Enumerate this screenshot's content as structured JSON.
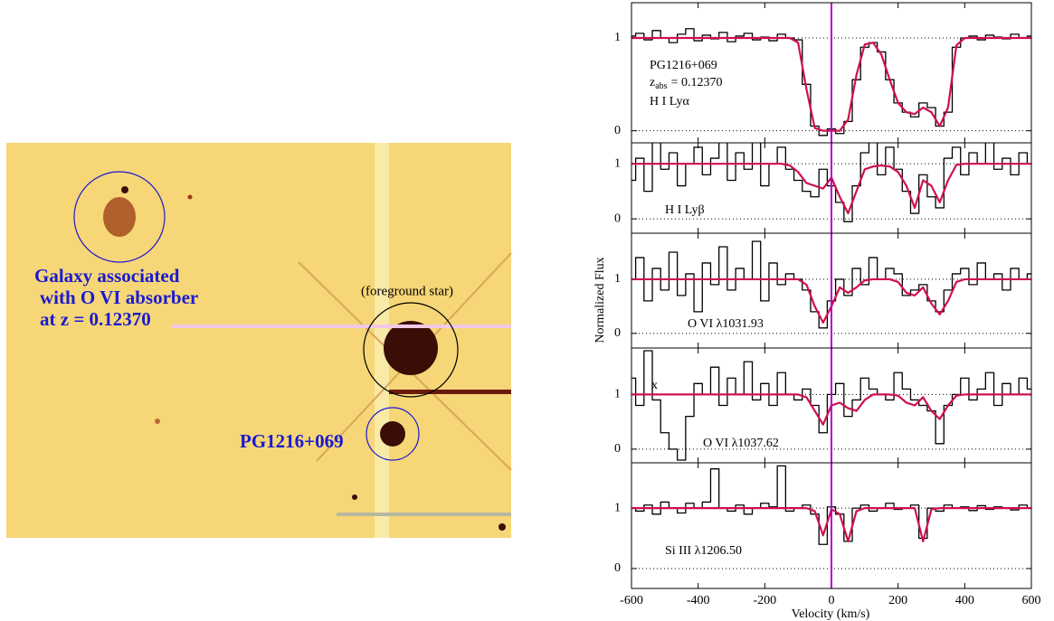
{
  "image": {
    "galaxy_label": [
      "Galaxy associated",
      "with O VI absorber",
      "at z = 0.12370"
    ],
    "star_label": "(foreground star)",
    "qso_label": "PG1216+069"
  },
  "figure": {
    "xlabel": "Velocity (km/s)",
    "ylabel": "Normalized Flux"
  },
  "chart_data": [
    {
      "type": "line",
      "annotations": [
        "PG1216+069",
        {
          "text": "z",
          "sub": "abs",
          "rest": "= 0.12370"
        },
        "H I Lyα"
      ],
      "xlim": [
        -600,
        600
      ],
      "ylim": [
        -0.13,
        1.38
      ],
      "yticks": [
        0,
        1
      ],
      "grid": "dotted",
      "vline": {
        "value": 0,
        "color": "#b000c8"
      },
      "x": [
        -600,
        -575,
        -550,
        -525,
        -500,
        -475,
        -450,
        -425,
        -400,
        -375,
        -350,
        -325,
        -300,
        -275,
        -250,
        -225,
        -200,
        -175,
        -150,
        -125,
        -100,
        -75,
        -50,
        -25,
        0,
        25,
        50,
        75,
        100,
        125,
        150,
        175,
        200,
        225,
        250,
        275,
        300,
        325,
        350,
        375,
        400,
        425,
        450,
        475,
        500,
        525,
        550,
        575,
        600
      ],
      "series": [
        {
          "color": "#000000",
          "drawstyle": "steps-mid",
          "values": [
            1.02,
            1.05,
            0.98,
            1.08,
            1.0,
            0.95,
            1.04,
            1.1,
            0.97,
            1.03,
            0.99,
            1.06,
            0.96,
            1.02,
            1.05,
            0.98,
            1.01,
            0.97,
            1.04,
            1.0,
            0.98,
            0.5,
            0.05,
            -0.05,
            0.02,
            -0.03,
            0.1,
            0.55,
            0.9,
            0.95,
            0.85,
            0.55,
            0.3,
            0.2,
            0.15,
            0.3,
            0.25,
            0.05,
            0.2,
            0.9,
            1.0,
            1.02,
            0.98,
            1.03,
            1.01,
            0.99,
            1.04,
            1.0,
            1.02
          ]
        },
        {
          "color": "#d0104c",
          "drawstyle": "smooth",
          "values": [
            1,
            1,
            1,
            1,
            1,
            1,
            1,
            1,
            1,
            1,
            1,
            1,
            1,
            1,
            1,
            1,
            1,
            1,
            1,
            1,
            0.95,
            0.45,
            0.03,
            0.0,
            0.0,
            0.0,
            0.12,
            0.6,
            0.93,
            0.95,
            0.82,
            0.55,
            0.3,
            0.2,
            0.18,
            0.25,
            0.2,
            0.05,
            0.25,
            0.92,
            1,
            1,
            1,
            1,
            1,
            1,
            1,
            1,
            1
          ]
        }
      ]
    },
    {
      "type": "line",
      "annotations": [
        "H I Lyβ"
      ],
      "xlim": [
        -600,
        600
      ],
      "ylim": [
        -0.26,
        1.38
      ],
      "yticks": [
        0,
        1
      ],
      "grid": "dotted",
      "vline": {
        "value": 0,
        "color": "#b000c8"
      },
      "x": [
        -600,
        -575,
        -550,
        -525,
        -500,
        -475,
        -450,
        -425,
        -400,
        -375,
        -350,
        -325,
        -300,
        -275,
        -250,
        -225,
        -200,
        -175,
        -150,
        -125,
        -100,
        -75,
        -50,
        -25,
        0,
        25,
        50,
        75,
        100,
        125,
        150,
        175,
        200,
        225,
        250,
        275,
        300,
        325,
        350,
        375,
        400,
        425,
        450,
        475,
        500,
        525,
        550,
        575,
        600
      ],
      "series": [
        {
          "color": "#000000",
          "drawstyle": "steps-mid",
          "values": [
            0.7,
            1.1,
            0.5,
            1.4,
            0.9,
            1.2,
            0.6,
            1.0,
            1.3,
            0.8,
            1.1,
            1.5,
            0.7,
            1.2,
            0.9,
            1.4,
            0.6,
            1.0,
            1.3,
            0.9,
            0.7,
            0.5,
            0.4,
            0.9,
            0.6,
            0.3,
            -0.05,
            0.6,
            1.2,
            1.5,
            0.8,
            1.3,
            0.9,
            0.5,
            0.1,
            0.8,
            0.4,
            0.2,
            1.1,
            1.3,
            0.8,
            1.2,
            1.0,
            1.4,
            0.9,
            1.1,
            0.8,
            1.2,
            1.0
          ]
        },
        {
          "color": "#d0104c",
          "drawstyle": "smooth",
          "values": [
            1,
            1,
            1,
            1,
            1,
            1,
            1,
            1,
            1,
            1,
            1,
            1,
            1,
            1,
            1,
            1,
            1,
            1,
            1,
            0.97,
            0.85,
            0.65,
            0.6,
            0.55,
            0.75,
            0.4,
            0.1,
            0.5,
            0.9,
            0.95,
            0.97,
            0.95,
            0.85,
            0.6,
            0.2,
            0.7,
            0.6,
            0.3,
            0.7,
            0.98,
            1,
            1,
            1,
            1,
            1,
            1,
            1,
            1,
            1
          ]
        }
      ]
    },
    {
      "type": "line",
      "annotations": [
        "O VI λ1031.93"
      ],
      "xlim": [
        -600,
        600
      ],
      "ylim": [
        -0.27,
        1.85
      ],
      "yticks": [
        0,
        1
      ],
      "grid": "dotted",
      "vline": {
        "value": 0,
        "color": "#b000c8"
      },
      "x": [
        -600,
        -575,
        -550,
        -525,
        -500,
        -475,
        -450,
        -425,
        -400,
        -375,
        -350,
        -325,
        -300,
        -275,
        -250,
        -225,
        -200,
        -175,
        -150,
        -125,
        -100,
        -75,
        -50,
        -25,
        0,
        25,
        50,
        75,
        100,
        125,
        150,
        175,
        200,
        225,
        250,
        275,
        300,
        325,
        350,
        375,
        400,
        425,
        450,
        475,
        500,
        525,
        550,
        575,
        600
      ],
      "series": [
        {
          "color": "#000000",
          "drawstyle": "steps-mid",
          "values": [
            1.0,
            1.4,
            0.6,
            1.2,
            0.8,
            1.5,
            0.7,
            1.1,
            0.4,
            1.3,
            0.9,
            1.6,
            0.8,
            1.2,
            1.0,
            1.7,
            0.6,
            1.3,
            0.9,
            1.1,
            1.0,
            0.8,
            0.4,
            0.1,
            0.6,
            1.0,
            0.7,
            1.2,
            0.9,
            1.4,
            1.0,
            1.2,
            1.1,
            0.7,
            0.8,
            0.9,
            0.6,
            0.4,
            0.8,
            1.1,
            1.2,
            0.9,
            1.3,
            1.0,
            1.1,
            0.8,
            1.2,
            1.0,
            1.1
          ]
        },
        {
          "color": "#d0104c",
          "drawstyle": "smooth",
          "values": [
            1,
            1,
            1,
            1,
            1,
            1,
            1,
            1,
            1,
            1,
            1,
            1,
            1,
            1,
            1,
            1,
            1,
            1,
            1,
            1,
            1,
            0.9,
            0.5,
            0.2,
            0.5,
            0.85,
            0.75,
            0.85,
            0.98,
            1,
            1,
            1,
            0.95,
            0.75,
            0.7,
            0.85,
            0.55,
            0.35,
            0.6,
            0.95,
            1,
            1,
            1,
            1,
            1,
            1,
            1,
            1,
            1
          ]
        }
      ]
    },
    {
      "type": "line",
      "annotations": [
        "x",
        "O VI λ1037.62"
      ],
      "xlim": [
        -600,
        600
      ],
      "ylim": [
        -0.25,
        1.85
      ],
      "yticks": [
        0,
        1
      ],
      "grid": "dotted",
      "vline": {
        "value": 0,
        "color": "#b000c8"
      },
      "x": [
        -600,
        -575,
        -550,
        -525,
        -500,
        -475,
        -450,
        -425,
        -400,
        -375,
        -350,
        -325,
        -300,
        -275,
        -250,
        -225,
        -200,
        -175,
        -150,
        -125,
        -100,
        -75,
        -50,
        -25,
        0,
        25,
        50,
        75,
        100,
        125,
        150,
        175,
        200,
        225,
        250,
        275,
        300,
        325,
        350,
        375,
        400,
        425,
        450,
        475,
        500,
        525,
        550,
        575,
        600
      ],
      "series": [
        {
          "color": "#000000",
          "drawstyle": "steps-mid",
          "values": [
            1.3,
            0.8,
            1.8,
            0.9,
            0.3,
            0.0,
            -0.2,
            0.6,
            1.2,
            1.0,
            1.5,
            0.8,
            1.3,
            1.0,
            1.6,
            0.9,
            1.2,
            0.8,
            1.4,
            1.0,
            0.9,
            1.1,
            0.8,
            0.3,
            1.0,
            1.2,
            0.6,
            0.9,
            1.3,
            1.1,
            1.0,
            0.9,
            1.4,
            1.1,
            0.9,
            0.8,
            0.7,
            0.1,
            0.8,
            1.0,
            1.3,
            0.9,
            1.1,
            1.4,
            0.8,
            1.2,
            1.0,
            1.3,
            1.1
          ]
        },
        {
          "color": "#d0104c",
          "drawstyle": "smooth",
          "values": [
            1,
            1,
            1,
            1,
            1,
            1,
            1,
            1,
            1,
            1,
            1,
            1,
            1,
            1,
            1,
            1,
            1,
            1,
            1,
            1,
            1,
            0.95,
            0.7,
            0.45,
            0.8,
            0.85,
            0.75,
            0.7,
            0.9,
            1,
            1,
            1,
            0.98,
            0.85,
            0.8,
            0.95,
            0.7,
            0.55,
            0.8,
            0.98,
            1,
            1,
            1,
            1,
            1,
            1,
            1,
            1,
            1
          ]
        }
      ]
    },
    {
      "type": "line",
      "annotations": [
        "Si III λ1206.50"
      ],
      "xlim": [
        -600,
        600
      ],
      "ylim": [
        -0.33,
        1.75
      ],
      "yticks": [
        0,
        1
      ],
      "xticks": [
        -600,
        -400,
        -200,
        0,
        200,
        400,
        600
      ],
      "grid": "dotted",
      "vline": {
        "value": 0,
        "color": "#b000c8"
      },
      "x": [
        -600,
        -575,
        -550,
        -525,
        -500,
        -475,
        -450,
        -425,
        -400,
        -375,
        -350,
        -325,
        -300,
        -275,
        -250,
        -225,
        -200,
        -175,
        -150,
        -125,
        -100,
        -75,
        -50,
        -25,
        0,
        25,
        50,
        75,
        100,
        125,
        150,
        175,
        200,
        225,
        250,
        275,
        300,
        325,
        350,
        375,
        400,
        425,
        450,
        475,
        500,
        525,
        550,
        575,
        600
      ],
      "series": [
        {
          "color": "#000000",
          "drawstyle": "steps-mid",
          "values": [
            1.0,
            0.95,
            1.05,
            0.9,
            1.1,
            1.0,
            0.92,
            1.08,
            1.0,
            1.1,
            1.65,
            1.0,
            0.95,
            1.05,
            0.9,
            1.0,
            1.08,
            1.02,
            1.7,
            0.95,
            1.0,
            1.05,
            0.9,
            0.4,
            1.02,
            0.9,
            0.45,
            1.0,
            1.05,
            0.95,
            1.0,
            1.08,
            0.98,
            1.0,
            1.05,
            0.5,
            1.0,
            0.95,
            1.05,
            1.0,
            1.02,
            0.96,
            1.04,
            0.98,
            1.02,
            1.0,
            0.97,
            1.05,
            1.0
          ]
        },
        {
          "color": "#d0104c",
          "drawstyle": "smooth",
          "values": [
            1,
            1,
            1,
            1,
            1,
            1,
            1,
            1,
            1,
            1,
            1,
            1,
            1,
            1,
            1,
            1,
            1,
            1,
            1,
            1,
            1,
            1,
            0.95,
            0.55,
            0.98,
            0.9,
            0.45,
            0.95,
            1,
            1,
            1,
            1,
            1,
            1,
            1,
            0.45,
            0.98,
            1,
            1,
            1,
            1,
            1,
            1,
            1,
            1,
            1,
            1,
            1,
            1
          ]
        }
      ]
    }
  ]
}
